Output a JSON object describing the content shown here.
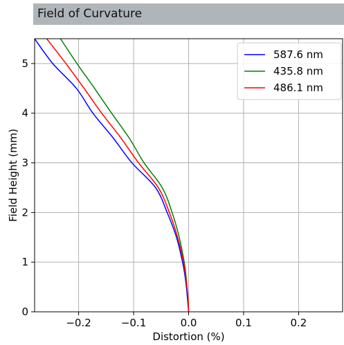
{
  "panel": {
    "title": "Field of Curvature"
  },
  "chart_data": {
    "type": "line",
    "xlabel": "Distortion (%)",
    "ylabel": "Field Height (mm)",
    "xlim": [
      -0.28,
      0.28
    ],
    "ylim": [
      0,
      5.5
    ],
    "xticks": [
      -0.2,
      -0.1,
      0.0,
      0.1,
      0.2
    ],
    "xtick_labels": [
      "−0.2",
      "−0.1",
      "0.0",
      "0.1",
      "0.2"
    ],
    "yticks": [
      0,
      1,
      2,
      3,
      4,
      5
    ],
    "ytick_labels": [
      "0",
      "1",
      "2",
      "3",
      "4",
      "5"
    ],
    "grid": true,
    "legend_position": "top-right",
    "y": [
      0,
      0.25,
      0.5,
      0.75,
      1.0,
      1.5,
      2.0,
      2.5,
      3.0,
      3.5,
      4.0,
      4.5,
      5.0,
      5.5
    ],
    "series": [
      {
        "name": "587.6 nm",
        "color": "#0000ff",
        "x": [
          0.0,
          -0.002,
          -0.004,
          -0.007,
          -0.011,
          -0.022,
          -0.039,
          -0.06,
          -0.103,
          -0.137,
          -0.174,
          -0.204,
          -0.247,
          -0.28
        ]
      },
      {
        "name": "435.8 nm",
        "color": "#008000",
        "x": [
          0.0,
          -0.001,
          -0.003,
          -0.005,
          -0.008,
          -0.017,
          -0.03,
          -0.048,
          -0.081,
          -0.108,
          -0.14,
          -0.171,
          -0.203,
          -0.233
        ]
      },
      {
        "name": "486.1 nm",
        "color": "#ff0000",
        "x": [
          0.0,
          -0.001,
          -0.003,
          -0.006,
          -0.009,
          -0.02,
          -0.035,
          -0.055,
          -0.091,
          -0.123,
          -0.158,
          -0.19,
          -0.223,
          -0.258
        ]
      }
    ]
  }
}
